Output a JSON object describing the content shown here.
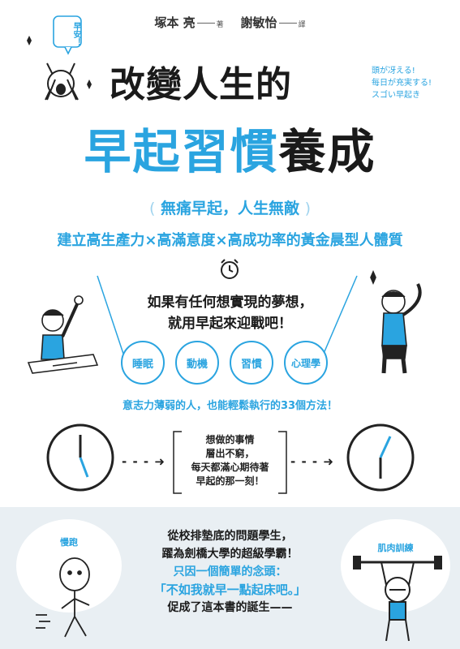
{
  "authors": {
    "author": "塚本 亮",
    "author_role": "著",
    "translator": "謝敏怡",
    "translator_role": "譯"
  },
  "bubble": "早安！",
  "title": {
    "line1": "改變人生的",
    "line2_blue": "早起習慣",
    "line2_black": "養成"
  },
  "japanese_tagline": [
    "頭が冴える!",
    "每日が充実する!",
    "スゴい早起き"
  ],
  "subtitle": {
    "slogan": "無痛早起，人生無敵",
    "benefits": "建立高生產力×高滿意度×高成功率的黃金晨型人體質"
  },
  "dream": [
    "如果有任何想實現的夢想，",
    "就用早起來迎戰吧！"
  ],
  "tags": [
    "睡眠",
    "動機",
    "習慣",
    "心理學"
  ],
  "will_text": "意志力薄弱的人，也能輕鬆執行的33個方法！",
  "center_box": [
    "想做的事情",
    "層出不窮，",
    "每天都滿心期待著",
    "早起的那一刻！"
  ],
  "arrow": "- - - ➜",
  "clouds": {
    "left": "慢跑",
    "right": "肌肉訓練"
  },
  "story": {
    "line1": "從校排墊底的問題學生，",
    "line2": "躍為劍橋大學的超級學霸！",
    "line3": "只因一個簡單的念頭：",
    "line4": "「不如我就早一點起床吧。」",
    "line5": "促成了這本書的誕生——"
  },
  "colors": {
    "accent": "#2aa4e0",
    "text": "#1a1a1a",
    "bottom_bg": "#e9eff3"
  }
}
